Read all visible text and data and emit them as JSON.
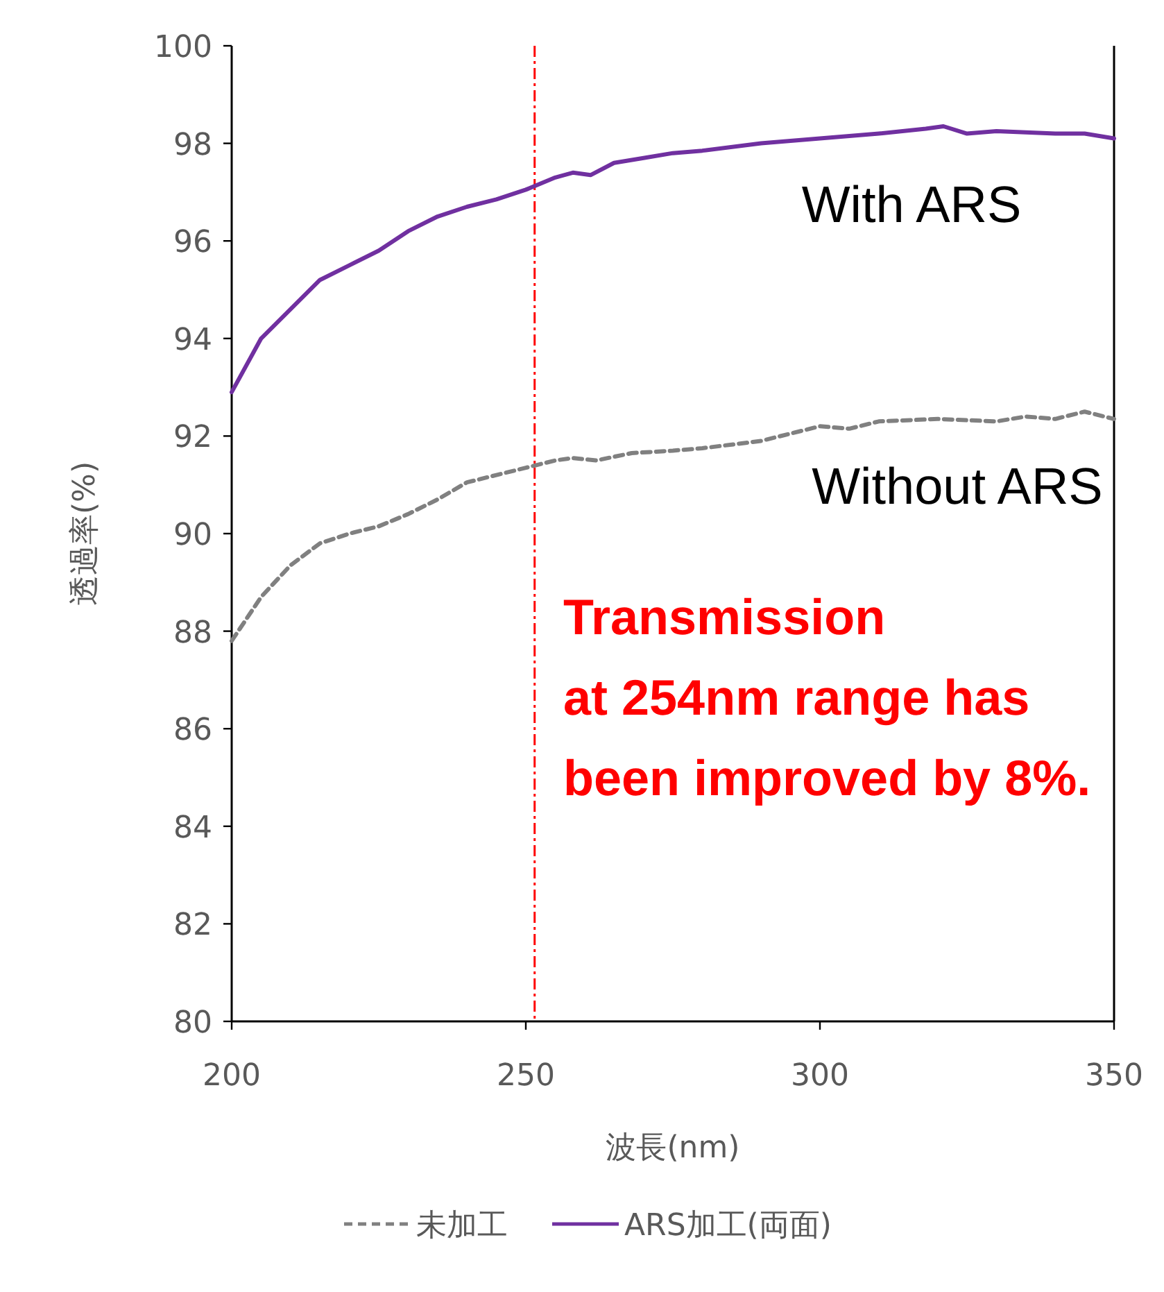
{
  "chart_data": {
    "type": "line",
    "xlabel": "波長(nm)",
    "ylabel": "透過率(%)",
    "xlim": [
      200,
      350
    ],
    "xticks": [
      200,
      250,
      300,
      350
    ],
    "ylim": [
      80,
      100
    ],
    "yticks": [
      80,
      82,
      84,
      86,
      88,
      90,
      92,
      94,
      96,
      98,
      100
    ],
    "grid": false,
    "legend": "bottom",
    "marker": "none",
    "series": [
      {
        "name": "未加工",
        "color": "#808080",
        "line_style": "dashed",
        "x": [
          200,
          205,
          210,
          215,
          220,
          225,
          230,
          235,
          240,
          245,
          250,
          255,
          258,
          262,
          268,
          275,
          280,
          290,
          295,
          300,
          305,
          310,
          320,
          330,
          335,
          340,
          345,
          350
        ],
        "values": [
          87.8,
          88.7,
          89.35,
          89.8,
          90.0,
          90.15,
          90.4,
          90.7,
          91.05,
          91.2,
          91.35,
          91.5,
          91.55,
          91.5,
          91.65,
          91.7,
          91.75,
          91.9,
          92.05,
          92.2,
          92.15,
          92.3,
          92.35,
          92.3,
          92.4,
          92.35,
          92.5,
          92.35
        ]
      },
      {
        "name": "ARS加工(両面)",
        "color": "#7030a0",
        "line_style": "solid",
        "x": [
          200,
          205,
          210,
          215,
          220,
          225,
          230,
          235,
          240,
          245,
          250,
          255,
          258,
          261,
          265,
          270,
          275,
          280,
          290,
          300,
          310,
          318,
          321,
          325,
          330,
          340,
          345,
          350
        ],
        "values": [
          92.9,
          94.0,
          94.6,
          95.2,
          95.5,
          95.8,
          96.2,
          96.5,
          96.7,
          96.85,
          97.05,
          97.3,
          97.4,
          97.35,
          97.6,
          97.7,
          97.8,
          97.85,
          98.0,
          98.1,
          98.2,
          98.3,
          98.35,
          98.2,
          98.25,
          98.2,
          98.2,
          98.1
        ]
      }
    ],
    "ref_lines": [
      {
        "axis": "x",
        "value": 251.5,
        "color": "#ff0000"
      }
    ],
    "annotations": [
      "With ARS",
      "Without ARS",
      "Transmission\nat 254nm range has been improved by 8%."
    ]
  }
}
